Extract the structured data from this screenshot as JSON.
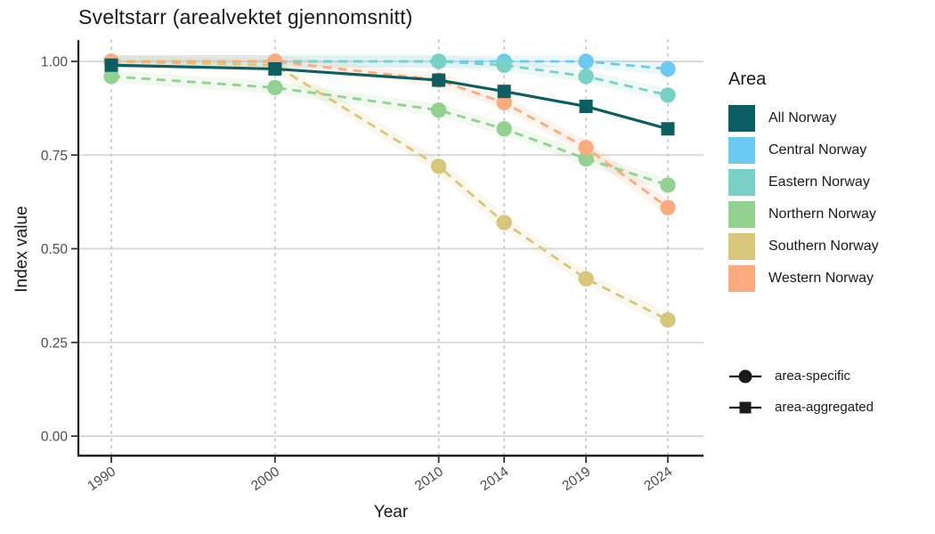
{
  "title": "Sveltstarr (arealvektet gjennomsnitt)",
  "chart_data": {
    "type": "line",
    "title": "Sveltstarr (arealvektet gjennomsnitt)",
    "xlabel": "Year",
    "ylabel": "Index value",
    "x": [
      1990,
      2000,
      2010,
      2014,
      2019,
      2024
    ],
    "x_tick_labels": [
      "1990",
      "2000",
      "2010",
      "2014",
      "2019",
      "2024"
    ],
    "y_ticks": [
      0.0,
      0.25,
      0.5,
      0.75,
      1.0
    ],
    "y_tick_labels": [
      "0.00",
      "0.25",
      "0.50",
      "0.75",
      "1.00"
    ],
    "ylim": [
      0,
      1
    ],
    "grid": {
      "horizontal": "solid",
      "vertical": "dotted",
      "background": "#ffffff"
    },
    "legend_position": "right",
    "legend_title": "Area",
    "series": [
      {
        "name": "All Norway",
        "color": "#0d5e62",
        "line": "solid",
        "marker": "square",
        "group": "area-aggregated",
        "values": [
          0.99,
          0.98,
          0.95,
          0.92,
          0.88,
          0.82
        ]
      },
      {
        "name": "Central Norway",
        "color": "#6bc9f2",
        "line": "dashed",
        "marker": "circle",
        "group": "area-specific",
        "values": [
          1.0,
          1.0,
          1.0,
          1.0,
          1.0,
          0.98
        ]
      },
      {
        "name": "Eastern Norway",
        "color": "#79d1c6",
        "line": "dashed",
        "marker": "circle",
        "group": "area-specific",
        "values": [
          1.0,
          1.0,
          1.0,
          0.99,
          0.96,
          0.91
        ]
      },
      {
        "name": "Northern Norway",
        "color": "#92d18f",
        "line": "dashed",
        "marker": "circle",
        "group": "area-specific",
        "values": [
          0.96,
          0.93,
          0.87,
          0.82,
          0.74,
          0.67
        ]
      },
      {
        "name": "Southern Norway",
        "color": "#d8c77b",
        "line": "dashed",
        "marker": "circle",
        "group": "area-specific",
        "values": [
          1.0,
          0.99,
          0.72,
          0.57,
          0.42,
          0.31
        ]
      },
      {
        "name": "Western Norway",
        "color": "#fbab7e",
        "line": "dashed",
        "marker": "circle",
        "group": "area-specific",
        "values": [
          1.0,
          1.0,
          0.95,
          0.89,
          0.77,
          0.61
        ]
      }
    ],
    "shape_legend": [
      {
        "label": "area-specific",
        "marker": "circle"
      },
      {
        "label": "area-aggregated",
        "marker": "square"
      }
    ],
    "colors": {
      "axis_line": "#1f1f1f",
      "tick_text": "#4d4d4d",
      "grid_solid": "#dadada",
      "grid_dotted": "#c9c9c9",
      "legend_key": "#1a1a1a"
    }
  }
}
